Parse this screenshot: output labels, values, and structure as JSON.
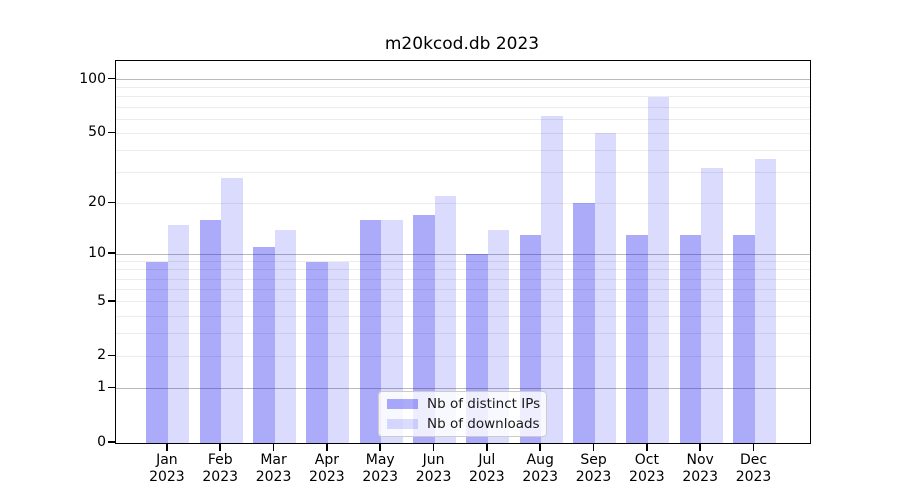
{
  "chart_data": {
    "type": "bar",
    "title": "m20kcod.db 2023",
    "categories": [
      "Jan 2023",
      "Feb 2023",
      "Mar 2023",
      "Apr 2023",
      "May 2023",
      "Jun 2023",
      "Jul 2023",
      "Aug 2023",
      "Sep 2023",
      "Oct 2023",
      "Nov 2023",
      "Dec 2023"
    ],
    "series": [
      {
        "name": "Nb of distinct IPs",
        "color": "rgba(0,0,240,0.33)",
        "values": [
          9,
          16,
          11,
          9,
          16,
          17,
          10,
          13,
          20,
          13,
          13,
          13
        ]
      },
      {
        "name": "Nb of downloads",
        "color": "rgba(0,0,240,0.14)",
        "values": [
          15,
          28,
          14,
          9,
          16,
          22,
          14,
          63,
          50,
          80,
          32,
          36
        ]
      }
    ],
    "yscale": "log10(1+y)",
    "yticks": [
      0,
      1,
      2,
      5,
      10,
      20,
      50,
      100
    ],
    "ylim": [
      0,
      127
    ],
    "grid": true,
    "major_grid_values": [
      1,
      10,
      100
    ],
    "minor_grid_values": [
      2,
      3,
      4,
      5,
      6,
      7,
      8,
      9,
      20,
      30,
      40,
      50,
      60,
      70,
      80,
      90
    ],
    "legend_position": "lower center",
    "colors": {
      "major_grid": "#b9b9b9",
      "minor_grid": "#ececec",
      "axis": "#000000",
      "legend_border": "#cccccc"
    }
  }
}
